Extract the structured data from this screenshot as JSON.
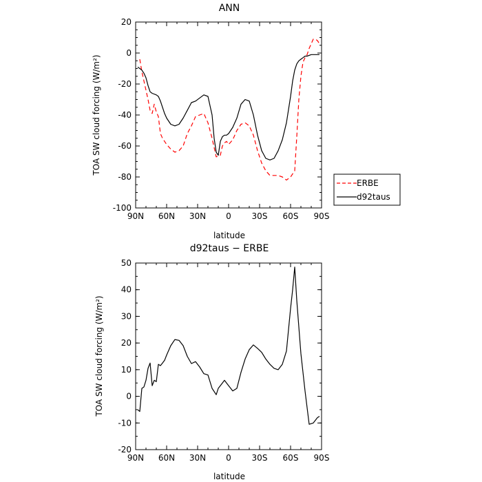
{
  "chart_data": [
    {
      "type": "line",
      "title": "ANN",
      "xlabel": "latitude",
      "ylabel": "TOA SW cloud forcing (W/m²)",
      "xticks": [
        "90N",
        "60N",
        "30N",
        "0",
        "30S",
        "60S",
        "90S"
      ],
      "xlim": [
        90,
        -90
      ],
      "ylim": [
        -100,
        20
      ],
      "yticks": [
        20,
        0,
        -20,
        -40,
        -60,
        -80,
        -100
      ],
      "legend": "outside-right",
      "series": [
        {
          "name": "ERBE",
          "color": "#ff0000",
          "style": "dashed",
          "x": [
            86,
            84,
            82,
            80,
            78,
            76,
            74,
            72,
            70,
            68,
            66,
            64,
            62,
            60,
            56,
            52,
            48,
            44,
            40,
            36,
            32,
            28,
            24,
            20,
            16,
            12,
            8,
            6,
            4,
            2,
            0,
            -4,
            -8,
            -12,
            -16,
            -20,
            -24,
            -28,
            -32,
            -36,
            -40,
            -44,
            -48,
            -52,
            -56,
            -60,
            -64,
            -66,
            -68,
            -70,
            -72,
            -74,
            -76,
            -78,
            -80,
            -82,
            -84,
            -86,
            -88
          ],
          "y": [
            -4,
            -12,
            -18,
            -24,
            -30,
            -37,
            -39,
            -33,
            -38,
            -41,
            -52,
            -55,
            -57,
            -59,
            -62,
            -64,
            -63,
            -60,
            -52,
            -47,
            -41,
            -40,
            -39,
            -45,
            -55,
            -67,
            -66,
            -60,
            -58,
            -57,
            -59,
            -56,
            -50,
            -46,
            -45,
            -47,
            -53,
            -63,
            -71,
            -76,
            -79,
            -79,
            -79,
            -80,
            -82,
            -80,
            -76,
            -54,
            -30,
            -15,
            -6,
            -3,
            -1,
            3,
            6,
            9,
            9,
            8,
            6
          ]
        },
        {
          "name": "d92taus",
          "color": "#000000",
          "style": "solid",
          "x": [
            88,
            86,
            84,
            82,
            80,
            78,
            76,
            74,
            70,
            68,
            66,
            64,
            62,
            60,
            56,
            52,
            48,
            44,
            40,
            36,
            32,
            28,
            24,
            20,
            16,
            14,
            12,
            10,
            8,
            6,
            4,
            2,
            0,
            -4,
            -8,
            -12,
            -16,
            -20,
            -24,
            -28,
            -32,
            -36,
            -40,
            -44,
            -48,
            -52,
            -56,
            -60,
            -62,
            -64,
            -66,
            -68,
            -70,
            -72,
            -74,
            -76,
            -80,
            -84,
            -88
          ],
          "y": [
            -9,
            -10,
            -11,
            -13,
            -16,
            -21,
            -25,
            -26,
            -27,
            -28,
            -31,
            -35,
            -39,
            -42,
            -46,
            -47,
            -46,
            -42,
            -37,
            -32,
            -31,
            -29,
            -27,
            -28,
            -40,
            -55,
            -64,
            -66,
            -57,
            -54,
            -53,
            -53,
            -52,
            -48,
            -42,
            -33,
            -30,
            -31,
            -40,
            -53,
            -63,
            -68,
            -69,
            -68,
            -63,
            -56,
            -45,
            -28,
            -18,
            -11,
            -7,
            -5,
            -4,
            -3,
            -2,
            -2,
            -1,
            -1,
            -1
          ]
        }
      ]
    },
    {
      "type": "line",
      "title": "d92taus − ERBE",
      "xlabel": "latitude",
      "ylabel": "TOA SW cloud forcing (W/m²)",
      "xticks": [
        "90N",
        "60N",
        "30N",
        "0",
        "30S",
        "60S",
        "90S"
      ],
      "xlim": [
        90,
        -90
      ],
      "ylim": [
        -20,
        50
      ],
      "yticks": [
        50,
        40,
        30,
        20,
        10,
        0,
        -10,
        -20
      ],
      "series": [
        {
          "name": "d92taus − ERBE",
          "color": "#000000",
          "style": "solid",
          "x": [
            88,
            86,
            84,
            82,
            80,
            78,
            76,
            74,
            72,
            70,
            68,
            66,
            64,
            62,
            60,
            56,
            52,
            48,
            44,
            40,
            36,
            32,
            28,
            24,
            20,
            16,
            12,
            10,
            8,
            6,
            4,
            2,
            0,
            -4,
            -8,
            -12,
            -16,
            -20,
            -24,
            -28,
            -32,
            -36,
            -40,
            -44,
            -48,
            -52,
            -56,
            -58,
            -60,
            -62,
            -64,
            -66,
            -70,
            -74,
            -78,
            -82,
            -86,
            -88
          ],
          "y": [
            -5,
            -5.7,
            3,
            3.5,
            6,
            10.5,
            12.5,
            4,
            6,
            5.5,
            12,
            11.5,
            12.5,
            13.5,
            15.5,
            19,
            21.3,
            21,
            19,
            15,
            12.3,
            13,
            11,
            8.5,
            8,
            3,
            0.6,
            3,
            4,
            5,
            6,
            5,
            4,
            2,
            3,
            9,
            14,
            17.5,
            19.3,
            18,
            16.5,
            14,
            12,
            10.5,
            10,
            12,
            17,
            25,
            33,
            40,
            48.5,
            36,
            16,
            2,
            -10.5,
            -10,
            -8,
            -7.5
          ]
        }
      ]
    }
  ]
}
